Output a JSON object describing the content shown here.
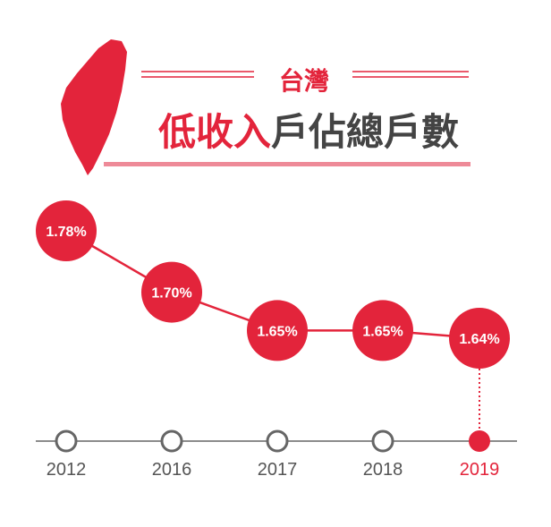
{
  "header": {
    "region": "台灣",
    "title_highlight": "低收入",
    "title_rest": "戶佔總戶數"
  },
  "colors": {
    "accent": "#e3243b",
    "accent_light": "#ee8a98",
    "text_dark": "#444444",
    "axis": "#666666"
  },
  "icons": {
    "map": "taiwan-map-icon"
  },
  "chart_data": {
    "type": "line",
    "categories": [
      "2012",
      "2016",
      "2017",
      "2018",
      "2019"
    ],
    "values": [
      1.78,
      1.7,
      1.65,
      1.65,
      1.64
    ],
    "labels": [
      "1.78%",
      "1.70%",
      "1.65%",
      "1.65%",
      "1.64%"
    ],
    "highlight_category": "2019",
    "title": "台灣 低收入戶佔總戶數",
    "xlabel": "",
    "ylabel": "",
    "grid": false,
    "legend": "none"
  }
}
